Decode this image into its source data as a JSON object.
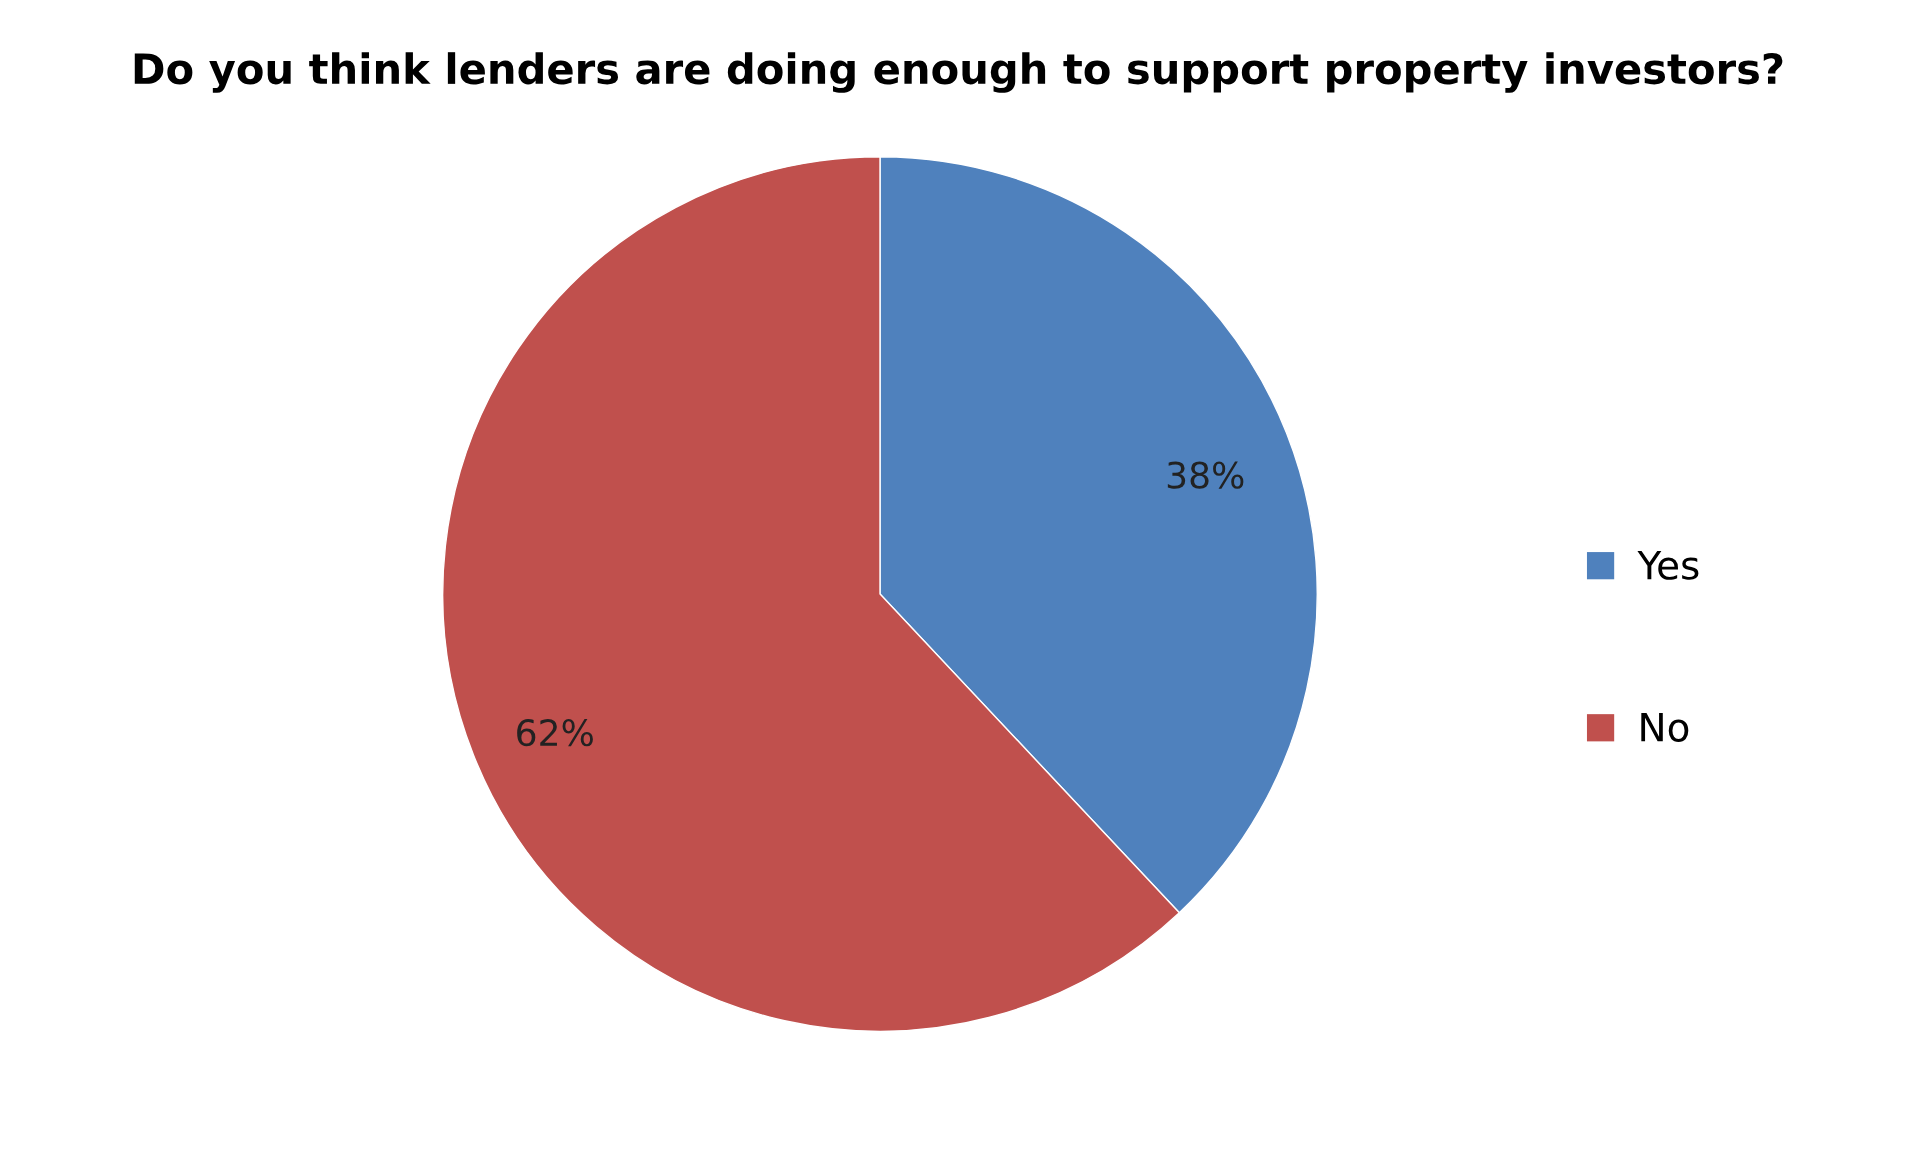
{
  "chart_data": {
    "type": "pie",
    "title": "Do you think lenders are doing enough to support property investors?",
    "categories": [
      "Yes",
      "No"
    ],
    "values": [
      38,
      62
    ],
    "value_labels": [
      "38%",
      "62%"
    ],
    "colors": [
      "#4f81bd",
      "#c0504d"
    ],
    "legend": "right"
  }
}
